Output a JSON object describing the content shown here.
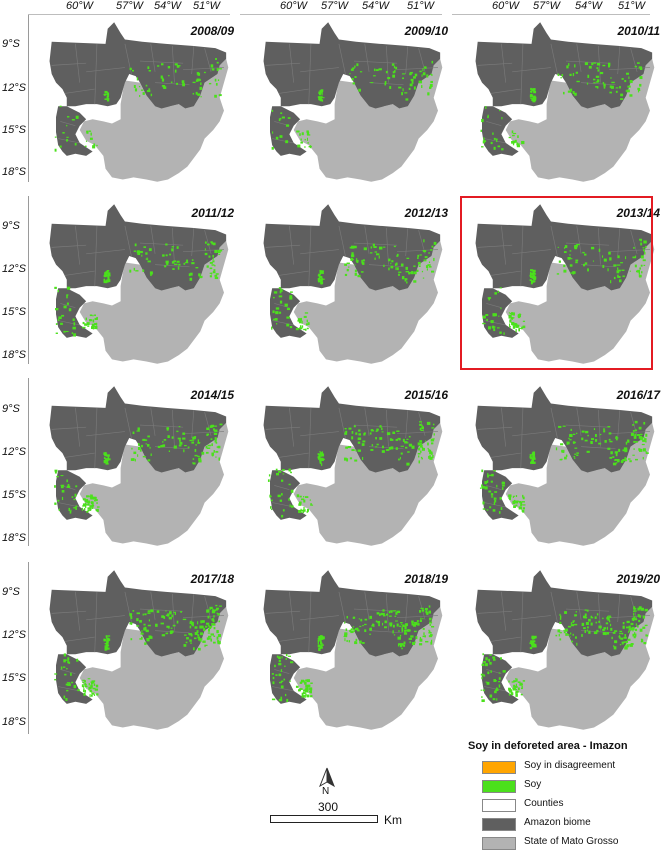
{
  "longitude_labels": [
    "60°W",
    "57°W",
    "54°W",
    "51°W"
  ],
  "latitude_labels": [
    "9°S",
    "12°S",
    "15°S",
    "18°S"
  ],
  "panels": [
    {
      "year": "2008/09",
      "soy_level": 0.35,
      "highlighted": false
    },
    {
      "year": "2009/10",
      "soy_level": 0.4,
      "highlighted": false
    },
    {
      "year": "2010/11",
      "soy_level": 0.45,
      "highlighted": false
    },
    {
      "year": "2011/12",
      "soy_level": 0.55,
      "highlighted": false
    },
    {
      "year": "2012/13",
      "soy_level": 0.6,
      "highlighted": false
    },
    {
      "year": "2013/14",
      "soy_level": 0.62,
      "highlighted": true
    },
    {
      "year": "2014/15",
      "soy_level": 0.7,
      "highlighted": false
    },
    {
      "year": "2015/16",
      "soy_level": 0.72,
      "highlighted": false
    },
    {
      "year": "2016/17",
      "soy_level": 0.75,
      "highlighted": false
    },
    {
      "year": "2017/18",
      "soy_level": 0.85,
      "highlighted": false
    },
    {
      "year": "2018/19",
      "soy_level": 0.88,
      "highlighted": false
    },
    {
      "year": "2019/20",
      "soy_level": 0.92,
      "highlighted": false
    }
  ],
  "legend": {
    "title": "Soy in deforeted area - Imazon",
    "items": [
      {
        "label": "Soy in disagreement",
        "color": "#ffa500"
      },
      {
        "label": "Soy",
        "color": "#4be01c"
      },
      {
        "label": "Counties",
        "color": "#ffffff"
      },
      {
        "label": "Amazon biome",
        "color": "#5f5f5f"
      },
      {
        "label": "State of Mato Grosso",
        "color": "#b3b3b3"
      }
    ]
  },
  "north_arrow": {
    "label": "N"
  },
  "scale_bar": {
    "value": "300",
    "unit": "Km"
  },
  "colors": {
    "highlight": "#e31b23",
    "soy": "#4be01c",
    "amazon": "#5f5f5f",
    "state": "#b3b3b3"
  }
}
